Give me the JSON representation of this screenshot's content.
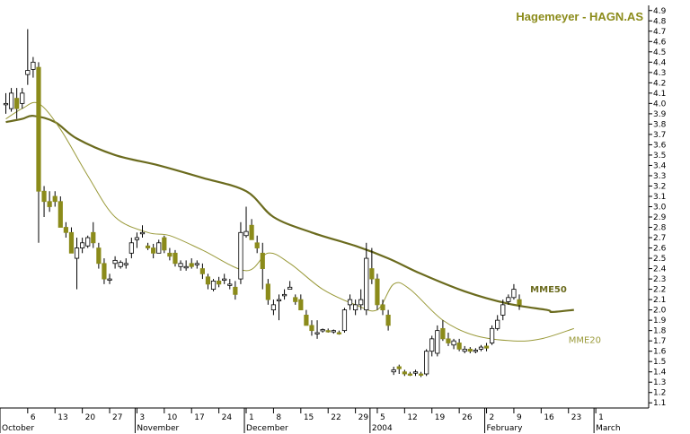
{
  "colors": {
    "background": "#ffffff",
    "axis": "#000000",
    "up_candle": "#ffffff",
    "down_candle": "#8b8b1a",
    "wick": "#000000",
    "mme50": "#6b6b1e",
    "mme20": "#9a9a3a",
    "title": "#8b8b1a"
  },
  "chart_data": {
    "type": "candlestick",
    "title": "Hagemeyer - HAGN.AS",
    "y_axis": {
      "position": "right",
      "range": [
        1.05,
        4.95
      ],
      "ticks": [
        "1.1",
        "1.2",
        "1.3",
        "1.4",
        "1.5",
        "1.6",
        "1.7",
        "1.8",
        "1.9",
        "2.0",
        "2.1",
        "2.2",
        "2.3",
        "2.4",
        "2.5",
        "2.6",
        "2.7",
        "2.8",
        "2.9",
        "3.0",
        "3.1",
        "3.2",
        "3.3",
        "3.4",
        "3.5",
        "3.6",
        "3.7",
        "3.8",
        "3.9",
        "4.0",
        "4.1",
        "4.2",
        "4.3",
        "4.4",
        "4.5",
        "4.6",
        "4.7",
        "4.8",
        "4.9"
      ]
    },
    "x_axis": {
      "ticks": [
        {
          "label": "6",
          "i": 4
        },
        {
          "label": "13",
          "i": 9
        },
        {
          "label": "20",
          "i": 14
        },
        {
          "label": "27",
          "i": 19
        },
        {
          "label": "3",
          "i": 24
        },
        {
          "label": "10",
          "i": 29
        },
        {
          "label": "17",
          "i": 34
        },
        {
          "label": "24",
          "i": 39
        },
        {
          "label": "1",
          "i": 44
        },
        {
          "label": "8",
          "i": 49
        },
        {
          "label": "15",
          "i": 54
        },
        {
          "label": "22",
          "i": 59
        },
        {
          "label": "29",
          "i": 64
        },
        {
          "label": "5",
          "i": 68
        },
        {
          "label": "12",
          "i": 73
        },
        {
          "label": "19",
          "i": 78
        },
        {
          "label": "26",
          "i": 83
        },
        {
          "label": "2",
          "i": 88
        },
        {
          "label": "9",
          "i": 93
        },
        {
          "label": "16",
          "i": 98
        },
        {
          "label": "23",
          "i": 103
        },
        {
          "label": "1",
          "i": 108
        }
      ],
      "months": [
        {
          "label": "October",
          "i": 0
        },
        {
          "label": "November",
          "i": 24
        },
        {
          "label": "December",
          "i": 44
        },
        {
          "label": "2004",
          "i": 67
        },
        {
          "label": "February",
          "i": 88
        },
        {
          "label": "March",
          "i": 108
        }
      ]
    },
    "series": [
      {
        "type": "ohlc",
        "values": [
          [
            4.0,
            4.1,
            3.9,
            4.0
          ],
          [
            3.95,
            4.15,
            3.92,
            4.1
          ],
          [
            4.05,
            4.15,
            3.85,
            3.95
          ],
          [
            4.0,
            4.15,
            3.95,
            4.1
          ],
          [
            4.28,
            4.72,
            4.18,
            4.32
          ],
          [
            4.33,
            4.45,
            4.25,
            4.4
          ],
          [
            4.35,
            4.4,
            2.65,
            3.15
          ],
          [
            3.15,
            3.2,
            2.9,
            3.05
          ],
          [
            3.05,
            3.15,
            2.95,
            3.0
          ],
          [
            3.1,
            3.15,
            3.0,
            3.05
          ],
          [
            3.05,
            3.1,
            2.8,
            2.8
          ],
          [
            2.8,
            2.85,
            2.7,
            2.75
          ],
          [
            2.75,
            2.8,
            2.55,
            2.55
          ],
          [
            2.5,
            2.7,
            2.2,
            2.6
          ],
          [
            2.6,
            2.7,
            2.55,
            2.65
          ],
          [
            2.62,
            2.72,
            2.6,
            2.7
          ],
          [
            2.75,
            2.85,
            2.6,
            2.65
          ],
          [
            2.6,
            2.65,
            2.4,
            2.45
          ],
          [
            2.45,
            2.5,
            2.25,
            2.3
          ],
          [
            2.3,
            2.35,
            2.25,
            2.3
          ],
          [
            2.45,
            2.52,
            2.4,
            2.48
          ],
          [
            2.42,
            2.48,
            2.4,
            2.46
          ],
          [
            2.45,
            2.5,
            2.4,
            2.45
          ],
          [
            2.55,
            2.7,
            2.5,
            2.65
          ],
          [
            2.68,
            2.75,
            2.6,
            2.7
          ],
          [
            2.75,
            2.82,
            2.7,
            2.75
          ],
          [
            2.62,
            2.65,
            2.58,
            2.6
          ],
          [
            2.6,
            2.64,
            2.5,
            2.55
          ],
          [
            2.55,
            2.68,
            2.55,
            2.65
          ],
          [
            2.7,
            2.72,
            2.55,
            2.58
          ],
          [
            2.55,
            2.6,
            2.48,
            2.52
          ],
          [
            2.55,
            2.58,
            2.42,
            2.45
          ],
          [
            2.42,
            2.48,
            2.38,
            2.45
          ],
          [
            2.42,
            2.48,
            2.38,
            2.42
          ],
          [
            2.45,
            2.5,
            2.4,
            2.42
          ],
          [
            2.45,
            2.48,
            2.4,
            2.45
          ],
          [
            2.4,
            2.45,
            2.3,
            2.35
          ],
          [
            2.32,
            2.35,
            2.2,
            2.25
          ],
          [
            2.2,
            2.3,
            2.18,
            2.28
          ],
          [
            2.28,
            2.32,
            2.22,
            2.25
          ],
          [
            2.3,
            2.35,
            2.25,
            2.3
          ],
          [
            2.25,
            2.3,
            2.2,
            2.25
          ],
          [
            2.22,
            2.28,
            2.1,
            2.15
          ],
          [
            2.3,
            2.85,
            2.25,
            2.75
          ],
          [
            2.72,
            3.0,
            2.7,
            2.76
          ],
          [
            2.82,
            2.88,
            2.68,
            2.68
          ],
          [
            2.65,
            2.72,
            2.55,
            2.6
          ],
          [
            2.55,
            2.65,
            2.2,
            2.4
          ],
          [
            2.25,
            2.3,
            2.05,
            2.1
          ],
          [
            2.0,
            2.1,
            1.95,
            2.05
          ],
          [
            2.1,
            2.15,
            1.9,
            2.1
          ],
          [
            2.15,
            2.2,
            2.1,
            2.15
          ],
          [
            2.2,
            2.28,
            2.2,
            2.22
          ],
          [
            2.12,
            2.15,
            2.05,
            2.08
          ],
          [
            2.1,
            2.15,
            2.0,
            2.0
          ],
          [
            1.95,
            2.0,
            1.85,
            1.85
          ],
          [
            1.85,
            1.9,
            1.75,
            1.8
          ],
          [
            1.78,
            1.9,
            1.72,
            1.78
          ],
          [
            1.8,
            1.82,
            1.78,
            1.81
          ],
          [
            1.8,
            1.82,
            1.78,
            1.79
          ],
          [
            1.79,
            1.81,
            1.77,
            1.8
          ],
          [
            1.78,
            1.8,
            1.76,
            1.77
          ],
          [
            1.8,
            2.02,
            1.78,
            2.0
          ],
          [
            2.05,
            2.15,
            2.0,
            2.1
          ],
          [
            2.0,
            2.1,
            1.95,
            2.05
          ],
          [
            2.05,
            2.2,
            2.0,
            2.1
          ],
          [
            2.0,
            2.65,
            1.95,
            2.5
          ],
          [
            2.4,
            2.6,
            2.25,
            2.3
          ],
          [
            2.3,
            2.35,
            2.0,
            2.05
          ],
          [
            2.05,
            2.1,
            1.95,
            2.0
          ],
          [
            1.95,
            2.0,
            1.8,
            1.85
          ],
          [
            1.4,
            1.45,
            1.37,
            1.42
          ],
          [
            1.45,
            1.47,
            1.38,
            1.43
          ],
          [
            1.4,
            1.42,
            1.36,
            1.38
          ],
          [
            1.38,
            1.4,
            1.36,
            1.37
          ],
          [
            1.4,
            1.42,
            1.36,
            1.4
          ],
          [
            1.38,
            1.4,
            1.35,
            1.37
          ],
          [
            1.38,
            1.62,
            1.36,
            1.6
          ],
          [
            1.6,
            1.75,
            1.55,
            1.72
          ],
          [
            1.58,
            1.85,
            1.55,
            1.8
          ],
          [
            1.82,
            1.9,
            1.7,
            1.72
          ],
          [
            1.72,
            1.78,
            1.65,
            1.68
          ],
          [
            1.66,
            1.72,
            1.62,
            1.7
          ],
          [
            1.68,
            1.72,
            1.6,
            1.62
          ],
          [
            1.6,
            1.65,
            1.58,
            1.62
          ],
          [
            1.62,
            1.64,
            1.58,
            1.6
          ],
          [
            1.6,
            1.63,
            1.58,
            1.61
          ],
          [
            1.62,
            1.66,
            1.6,
            1.64
          ],
          [
            1.65,
            1.68,
            1.6,
            1.63
          ],
          [
            1.68,
            1.85,
            1.66,
            1.82
          ],
          [
            1.82,
            1.95,
            1.8,
            1.9
          ],
          [
            1.95,
            2.1,
            1.9,
            2.05
          ],
          [
            2.08,
            2.15,
            2.05,
            2.12
          ],
          [
            2.12,
            2.25,
            2.1,
            2.2
          ],
          [
            2.1,
            2.15,
            2.0,
            2.05
          ]
        ]
      },
      {
        "name": "MME50",
        "points": [
          [
            0,
            3.82
          ],
          [
            3,
            3.85
          ],
          [
            5,
            3.88
          ],
          [
            9,
            3.82
          ],
          [
            13,
            3.66
          ],
          [
            20,
            3.5
          ],
          [
            28,
            3.4
          ],
          [
            36,
            3.28
          ],
          [
            44,
            3.15
          ],
          [
            49,
            2.9
          ],
          [
            56,
            2.75
          ],
          [
            64,
            2.62
          ],
          [
            70,
            2.5
          ],
          [
            76,
            2.35
          ],
          [
            84,
            2.18
          ],
          [
            92,
            2.06
          ],
          [
            99,
            2.0
          ],
          [
            100,
            1.98
          ],
          [
            104,
            2.0
          ]
        ]
      },
      {
        "name": "MME20",
        "points": [
          [
            0,
            3.85
          ],
          [
            3,
            3.95
          ],
          [
            6,
            4.0
          ],
          [
            10,
            3.75
          ],
          [
            15,
            3.3
          ],
          [
            20,
            2.9
          ],
          [
            26,
            2.75
          ],
          [
            30,
            2.72
          ],
          [
            36,
            2.58
          ],
          [
            44,
            2.38
          ],
          [
            48,
            2.55
          ],
          [
            52,
            2.45
          ],
          [
            58,
            2.2
          ],
          [
            64,
            2.05
          ],
          [
            68,
            2.0
          ],
          [
            71,
            2.25
          ],
          [
            74,
            2.2
          ],
          [
            80,
            1.9
          ],
          [
            86,
            1.75
          ],
          [
            93,
            1.7
          ],
          [
            98,
            1.72
          ],
          [
            104,
            1.82
          ]
        ]
      }
    ],
    "annotations": [
      {
        "text": "MME50",
        "i": 96,
        "y": 2.17
      },
      {
        "text": "MME20",
        "i": 103,
        "y": 1.68
      }
    ]
  }
}
